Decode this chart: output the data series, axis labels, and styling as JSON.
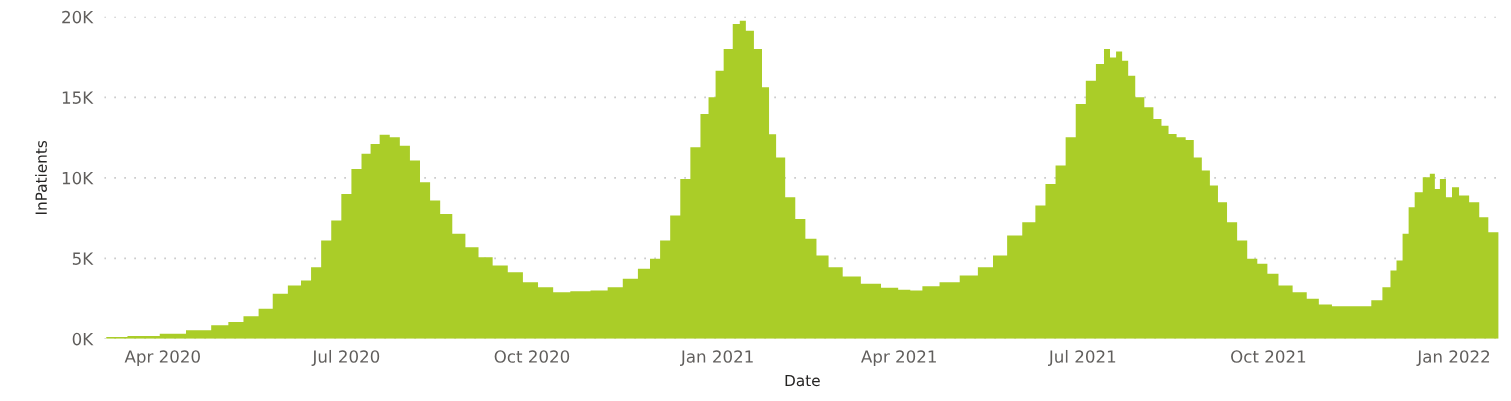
{
  "chart_data": {
    "type": "area",
    "xlabel": "Date",
    "ylabel": "InPatients",
    "color": "#aacd28",
    "grid": "y",
    "x": [
      "2020-03-04",
      "2020-03-25",
      "2020-04-05",
      "2020-04-20",
      "2020-04-30",
      "2020-05-07",
      "2020-05-15",
      "2020-05-22",
      "2020-05-29",
      "2020-06-06",
      "2020-06-11",
      "2020-06-16",
      "2020-06-21",
      "2020-06-26",
      "2020-07-01",
      "2020-07-06",
      "2020-07-11",
      "2020-07-15",
      "2020-07-20",
      "2020-07-25",
      "2020-07-30",
      "2020-08-04",
      "2020-08-09",
      "2020-08-14",
      "2020-08-19",
      "2020-08-26",
      "2020-09-01",
      "2020-09-08",
      "2020-09-15",
      "2020-09-23",
      "2020-09-30",
      "2020-10-08",
      "2020-10-15",
      "2020-10-25",
      "2020-11-04",
      "2020-11-11",
      "2020-11-19",
      "2020-11-26",
      "2020-12-01",
      "2020-12-06",
      "2020-12-11",
      "2020-12-16",
      "2020-12-21",
      "2020-12-26",
      "2020-12-29",
      "2021-01-02",
      "2021-01-06",
      "2021-01-11",
      "2021-01-13",
      "2021-01-17",
      "2021-01-21",
      "2021-01-25",
      "2021-01-28",
      "2021-02-01",
      "2021-02-06",
      "2021-02-11",
      "2021-02-16",
      "2021-02-22",
      "2021-02-28",
      "2021-03-08",
      "2021-03-18",
      "2021-03-28",
      "2021-04-04",
      "2021-04-09",
      "2021-04-16",
      "2021-04-26",
      "2021-05-06",
      "2021-05-14",
      "2021-05-21",
      "2021-05-28",
      "2021-06-05",
      "2021-06-10",
      "2021-06-15",
      "2021-06-20",
      "2021-06-25",
      "2021-06-30",
      "2021-07-05",
      "2021-07-10",
      "2021-07-13",
      "2021-07-16",
      "2021-07-19",
      "2021-07-22",
      "2021-07-25",
      "2021-07-29",
      "2021-08-03",
      "2021-08-07",
      "2021-08-11",
      "2021-08-14",
      "2021-08-19",
      "2021-08-23",
      "2021-08-27",
      "2021-08-31",
      "2021-09-04",
      "2021-09-08",
      "2021-09-13",
      "2021-09-18",
      "2021-09-23",
      "2021-09-28",
      "2021-10-03",
      "2021-10-09",
      "2021-10-17",
      "2021-10-23",
      "2021-10-29",
      "2021-11-05",
      "2021-11-18",
      "2021-11-24",
      "2021-11-29",
      "2021-12-02",
      "2021-12-05",
      "2021-12-08",
      "2021-12-11",
      "2021-12-14",
      "2021-12-19",
      "2021-12-21",
      "2021-12-24",
      "2021-12-26",
      "2021-12-30",
      "2022-01-01",
      "2022-01-06",
      "2022-01-11",
      "2022-01-16",
      "2022-01-20",
      "2022-01-23"
    ],
    "values": [
      110,
      170,
      320,
      530,
      840,
      1040,
      1400,
      1870,
      2800,
      3320,
      3630,
      4450,
      6110,
      7350,
      9000,
      10550,
      11490,
      12100,
      12680,
      12520,
      12000,
      11070,
      9720,
      8590,
      7760,
      6520,
      5690,
      5070,
      4560,
      4140,
      3520,
      3210,
      2900,
      2960,
      3010,
      3210,
      3730,
      4350,
      4970,
      6110,
      7660,
      9930,
      11900,
      13970,
      15000,
      16650,
      18000,
      19550,
      19750,
      19130,
      18000,
      15620,
      12710,
      11270,
      8790,
      7450,
      6210,
      5180,
      4450,
      3880,
      3420,
      3170,
      3050,
      3010,
      3260,
      3520,
      3940,
      4450,
      5180,
      6420,
      7240,
      8280,
      9620,
      10760,
      12520,
      14590,
      16030,
      17070,
      18000,
      17480,
      17850,
      17270,
      16340,
      15000,
      14380,
      13660,
      13240,
      12730,
      12520,
      12350,
      11270,
      10450,
      9520,
      8480,
      7240,
      6110,
      4970,
      4660,
      4040,
      3320,
      2900,
      2490,
      2140,
      2020,
      2020,
      2390,
      3210,
      4250,
      4870,
      6520,
      8170,
      9100,
      10030,
      10250,
      9310,
      9930,
      8790,
      9410,
      8900,
      8480,
      7550,
      6620,
      6620
    ],
    "xlim": [
      "2020-03-03",
      "2022-01-24"
    ],
    "xticks": [
      {
        "value": "2020-04-01",
        "label": "Apr 2020"
      },
      {
        "value": "2020-07-01",
        "label": "Jul 2020"
      },
      {
        "value": "2020-10-01",
        "label": "Oct 2020"
      },
      {
        "value": "2021-01-01",
        "label": "Jan 2021"
      },
      {
        "value": "2021-04-01",
        "label": "Apr 2021"
      },
      {
        "value": "2021-07-01",
        "label": "Jul 2021"
      },
      {
        "value": "2021-10-01",
        "label": "Oct 2021"
      },
      {
        "value": "2022-01-01",
        "label": "Jan 2022"
      }
    ],
    "ylim": [
      0,
      20000
    ],
    "yticks": [
      {
        "value": 0,
        "label": "0K"
      },
      {
        "value": 5000,
        "label": "5K"
      },
      {
        "value": 10000,
        "label": "10K"
      },
      {
        "value": 15000,
        "label": "15K"
      },
      {
        "value": 20000,
        "label": "20K"
      }
    ]
  }
}
